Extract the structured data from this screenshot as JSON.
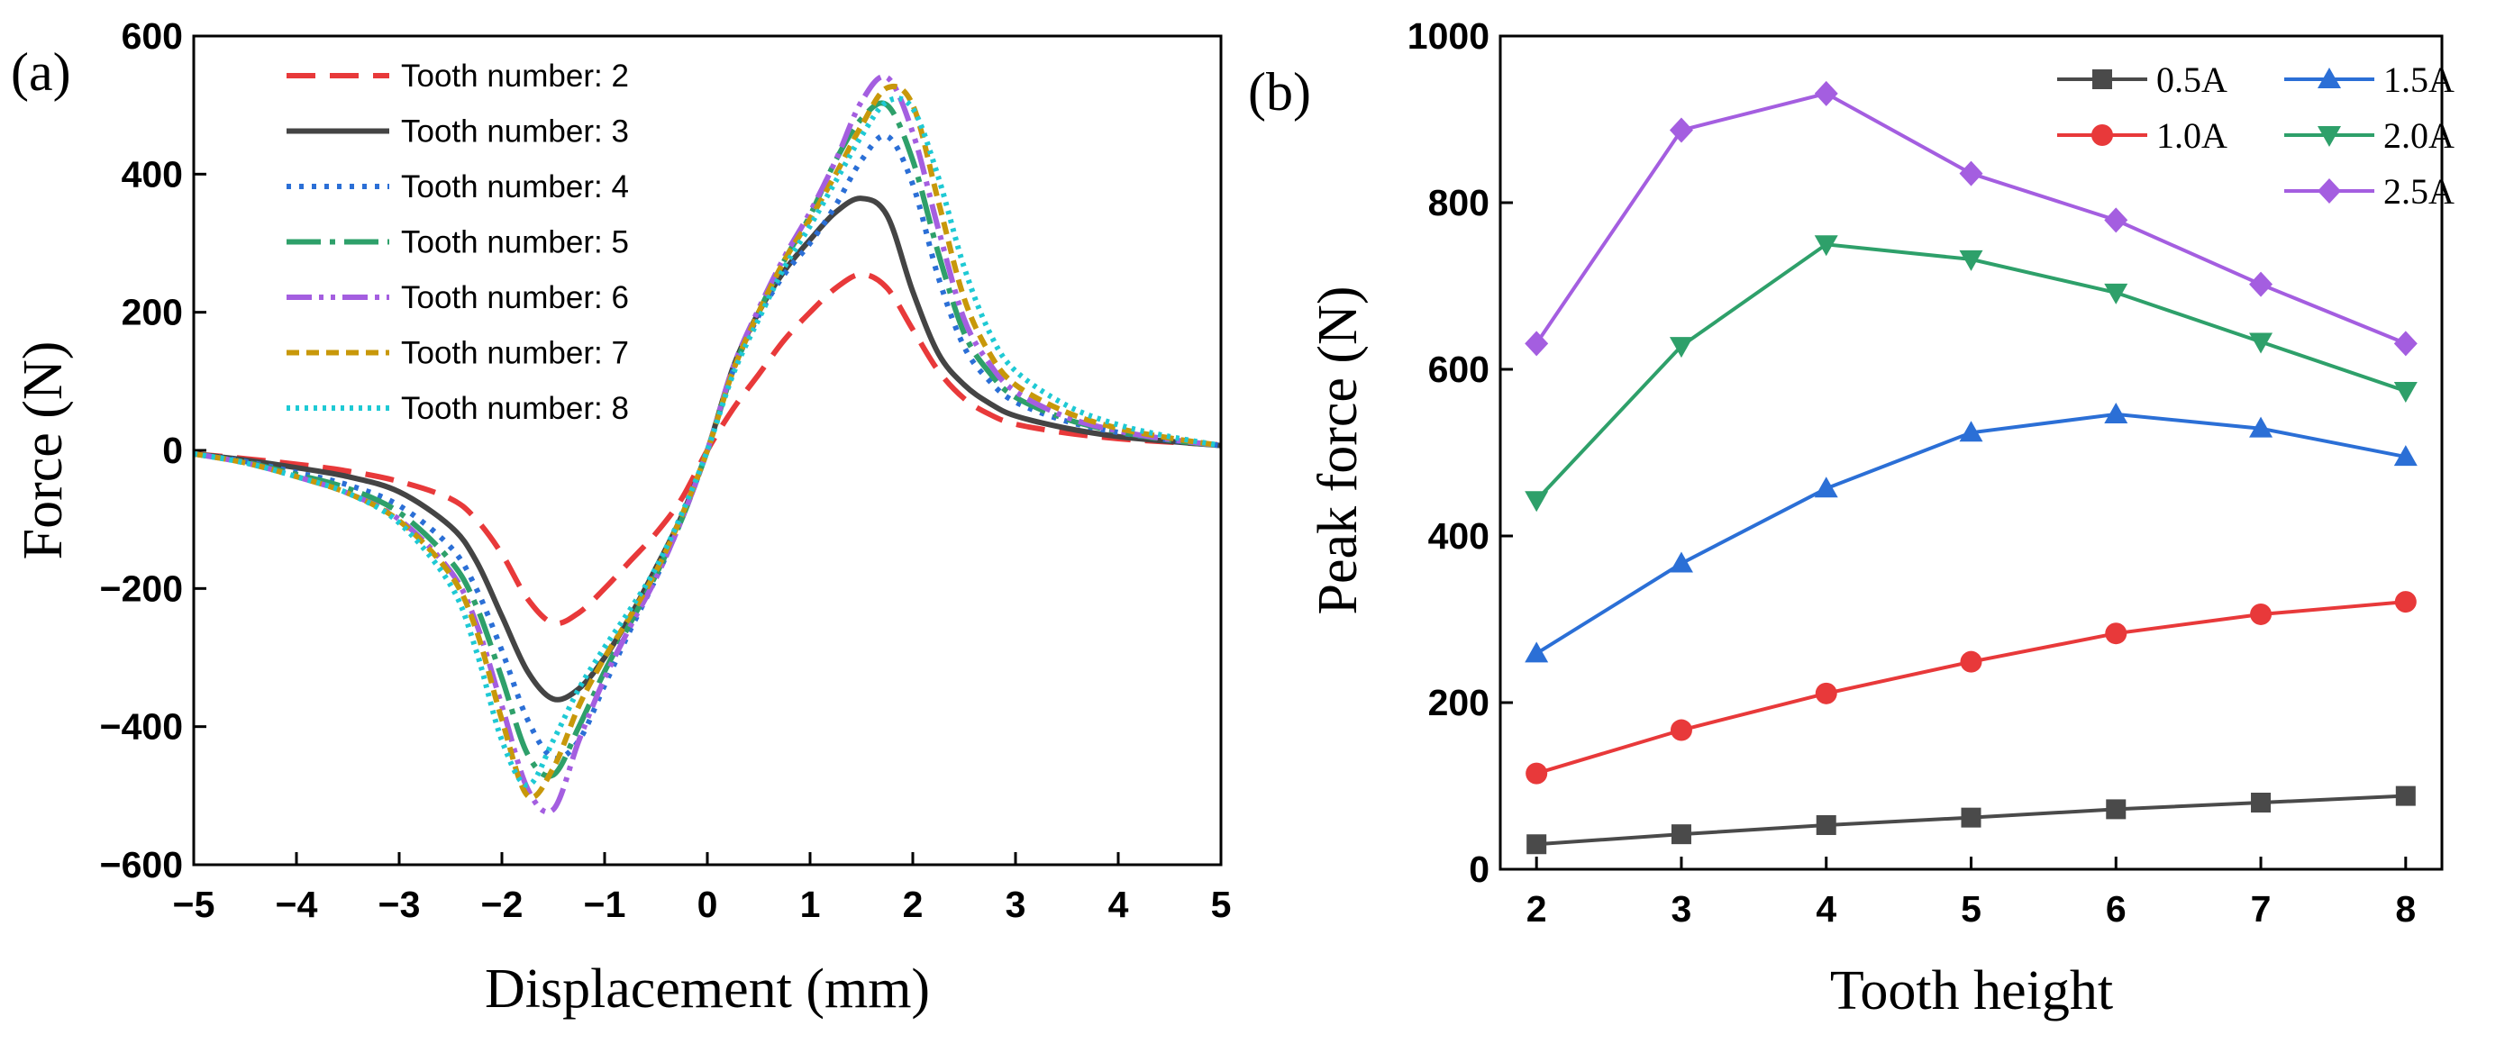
{
  "chart_data": [
    {
      "type": "line",
      "panel_label": "(a)",
      "title": "",
      "xlabel": "Displacement (mm)",
      "ylabel": "Force (N)",
      "xlim": [
        -5,
        5
      ],
      "ylim": [
        -600,
        600
      ],
      "xticks": [
        -5,
        -4,
        -3,
        -2,
        -1,
        0,
        1,
        2,
        3,
        4,
        5
      ],
      "yticks": [
        -600,
        -400,
        -200,
        0,
        200,
        400,
        600
      ],
      "xtick_labels": [
        "−5",
        "−4",
        "−3",
        "−2",
        "−1",
        "0",
        "1",
        "2",
        "3",
        "4",
        "5"
      ],
      "ytick_labels": [
        "−600",
        "−400",
        "−200",
        "0",
        "200",
        "400",
        "600"
      ],
      "legend_position": "top-left",
      "x": [
        -5,
        -4.5,
        -4,
        -3.5,
        -3,
        -2.5,
        -2.25,
        -2,
        -1.75,
        -1.5,
        -1.25,
        -1,
        -0.75,
        -0.5,
        -0.25,
        0,
        0.25,
        0.5,
        0.75,
        1,
        1.25,
        1.5,
        1.75,
        2,
        2.25,
        2.5,
        2.75,
        3,
        3.5,
        4,
        4.5,
        5
      ],
      "series": [
        {
          "name": "Tooth number: 2",
          "color": "#e8393a",
          "dash": "32,16",
          "values": [
            -5,
            -12,
            -20,
            -30,
            -45,
            -70,
            -100,
            -150,
            -215,
            -250,
            -235,
            -200,
            -160,
            -120,
            -70,
            0,
            60,
            110,
            160,
            200,
            235,
            255,
            235,
            175,
            115,
            75,
            52,
            38,
            25,
            17,
            12,
            8
          ]
        },
        {
          "name": "Tooth number: 3",
          "color": "#444444",
          "dash": "",
          "values": [
            -5,
            -14,
            -25,
            -38,
            -60,
            -110,
            -160,
            -240,
            -320,
            -360,
            -345,
            -300,
            -240,
            -170,
            -95,
            0,
            120,
            200,
            260,
            305,
            345,
            365,
            340,
            230,
            140,
            95,
            68,
            50,
            32,
            20,
            13,
            7
          ]
        },
        {
          "name": "Tooth number: 4",
          "color": "#2b6fd6",
          "dash": "5,9",
          "values": [
            -5,
            -16,
            -32,
            -50,
            -80,
            -140,
            -200,
            -290,
            -390,
            -445,
            -420,
            -340,
            -260,
            -185,
            -100,
            0,
            115,
            195,
            255,
            300,
            355,
            420,
            455,
            385,
            250,
            150,
            100,
            70,
            42,
            26,
            15,
            7
          ]
        },
        {
          "name": "Tooth number: 5",
          "color": "#2ea06a",
          "dash": "38,10,6,10",
          "values": [
            -5,
            -17,
            -35,
            -55,
            -90,
            -160,
            -225,
            -330,
            -440,
            -470,
            -400,
            -320,
            -250,
            -180,
            -100,
            0,
            115,
            200,
            275,
            340,
            420,
            480,
            500,
            420,
            285,
            170,
            112,
            77,
            45,
            27,
            15,
            7
          ]
        },
        {
          "name": "Tooth number: 6",
          "color": "#a45ee0",
          "dash": "28,8,5,8,5,8",
          "values": [
            -5,
            -18,
            -38,
            -62,
            -100,
            -175,
            -250,
            -370,
            -490,
            -520,
            -420,
            -330,
            -255,
            -185,
            -100,
            0,
            120,
            205,
            280,
            345,
            420,
            505,
            540,
            460,
            320,
            190,
            125,
            85,
            48,
            28,
            16,
            7
          ]
        },
        {
          "name": "Tooth number: 7",
          "color": "#c8980a",
          "dash": "14,8",
          "values": [
            -5,
            -18,
            -38,
            -62,
            -102,
            -180,
            -260,
            -390,
            -500,
            -460,
            -370,
            -300,
            -240,
            -175,
            -95,
            0,
            115,
            200,
            275,
            335,
            400,
            470,
            525,
            500,
            360,
            220,
            140,
            95,
            55,
            32,
            18,
            7
          ]
        },
        {
          "name": "Tooth number: 8",
          "color": "#1ec9d4",
          "dash": "4,6",
          "values": [
            -5,
            -18,
            -38,
            -62,
            -105,
            -195,
            -290,
            -420,
            -485,
            -420,
            -345,
            -285,
            -230,
            -170,
            -92,
            0,
            110,
            190,
            265,
            325,
            390,
            455,
            505,
            495,
            395,
            265,
            170,
            115,
            65,
            37,
            20,
            7
          ]
        }
      ]
    },
    {
      "type": "line",
      "panel_label": "(b)",
      "title": "",
      "xlabel": "Tooth height",
      "ylabel": "Peak force (N)",
      "xlim": [
        1.75,
        8.25
      ],
      "ylim": [
        0,
        1000
      ],
      "xticks": [
        2,
        3,
        4,
        5,
        6,
        7,
        8
      ],
      "yticks": [
        0,
        200,
        400,
        600,
        800,
        1000
      ],
      "xtick_labels": [
        "2",
        "3",
        "4",
        "5",
        "6",
        "7",
        "8"
      ],
      "ytick_labels": [
        "0",
        "200",
        "400",
        "600",
        "800",
        "1000"
      ],
      "legend_position": "top-right",
      "categories": [
        2,
        3,
        4,
        5,
        6,
        7,
        8
      ],
      "series": [
        {
          "name": "0.5A",
          "color": "#4a4a4a",
          "marker": "square",
          "values": [
            30,
            42,
            53,
            62,
            72,
            80,
            88
          ]
        },
        {
          "name": "1.0A",
          "color": "#e8393a",
          "marker": "circle",
          "values": [
            115,
            167,
            211,
            249,
            283,
            306,
            321
          ]
        },
        {
          "name": "1.5A",
          "color": "#2b6fd6",
          "marker": "triangle-up",
          "values": [
            259,
            367,
            457,
            524,
            546,
            529,
            495
          ]
        },
        {
          "name": "2.0A",
          "color": "#2ea06a",
          "marker": "triangle-down",
          "values": [
            443,
            628,
            750,
            732,
            692,
            633,
            574
          ]
        },
        {
          "name": "2.5A",
          "color": "#a45ee0",
          "marker": "diamond",
          "values": [
            631,
            887,
            931,
            835,
            779,
            702,
            631
          ]
        }
      ]
    }
  ]
}
